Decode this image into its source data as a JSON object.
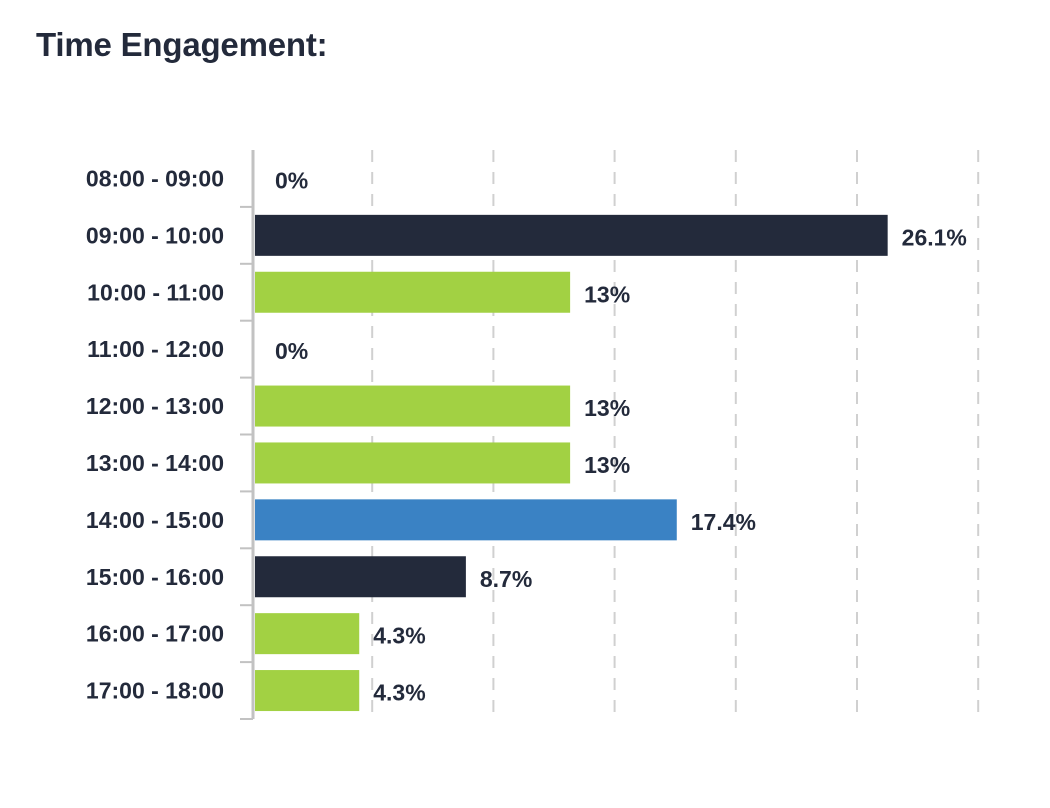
{
  "title": "Time Engagement:",
  "chart_data": {
    "type": "bar",
    "orientation": "horizontal",
    "title": "Time Engagement:",
    "categories": [
      "08:00 - 09:00",
      "09:00 - 10:00",
      "10:00 - 11:00",
      "11:00 - 12:00",
      "12:00 - 13:00",
      "13:00 - 14:00",
      "14:00 - 15:00",
      "15:00 - 16:00",
      "16:00 - 17:00",
      "17:00 - 18:00"
    ],
    "values": [
      0,
      26.1,
      13,
      0,
      13,
      13,
      17.4,
      8.7,
      4.3,
      4.3
    ],
    "value_labels": [
      "0%",
      "26.1%",
      "13%",
      "0%",
      "13%",
      "13%",
      "17.4%",
      "8.7%",
      "4.3%",
      "4.3%"
    ],
    "colors": [
      "#232a3b",
      "#232a3b",
      "#a2d143",
      "#a2d143",
      "#a2d143",
      "#a2d143",
      "#3a82c4",
      "#232a3b",
      "#a2d143",
      "#a2d143"
    ],
    "xlim": [
      0,
      30
    ],
    "grid": true,
    "grid_style": "dashed",
    "xlabel": "",
    "ylabel": ""
  },
  "colors": {
    "text": "#232a3b",
    "axis": "#c2c2c2",
    "grid": "#d0d0d0"
  }
}
